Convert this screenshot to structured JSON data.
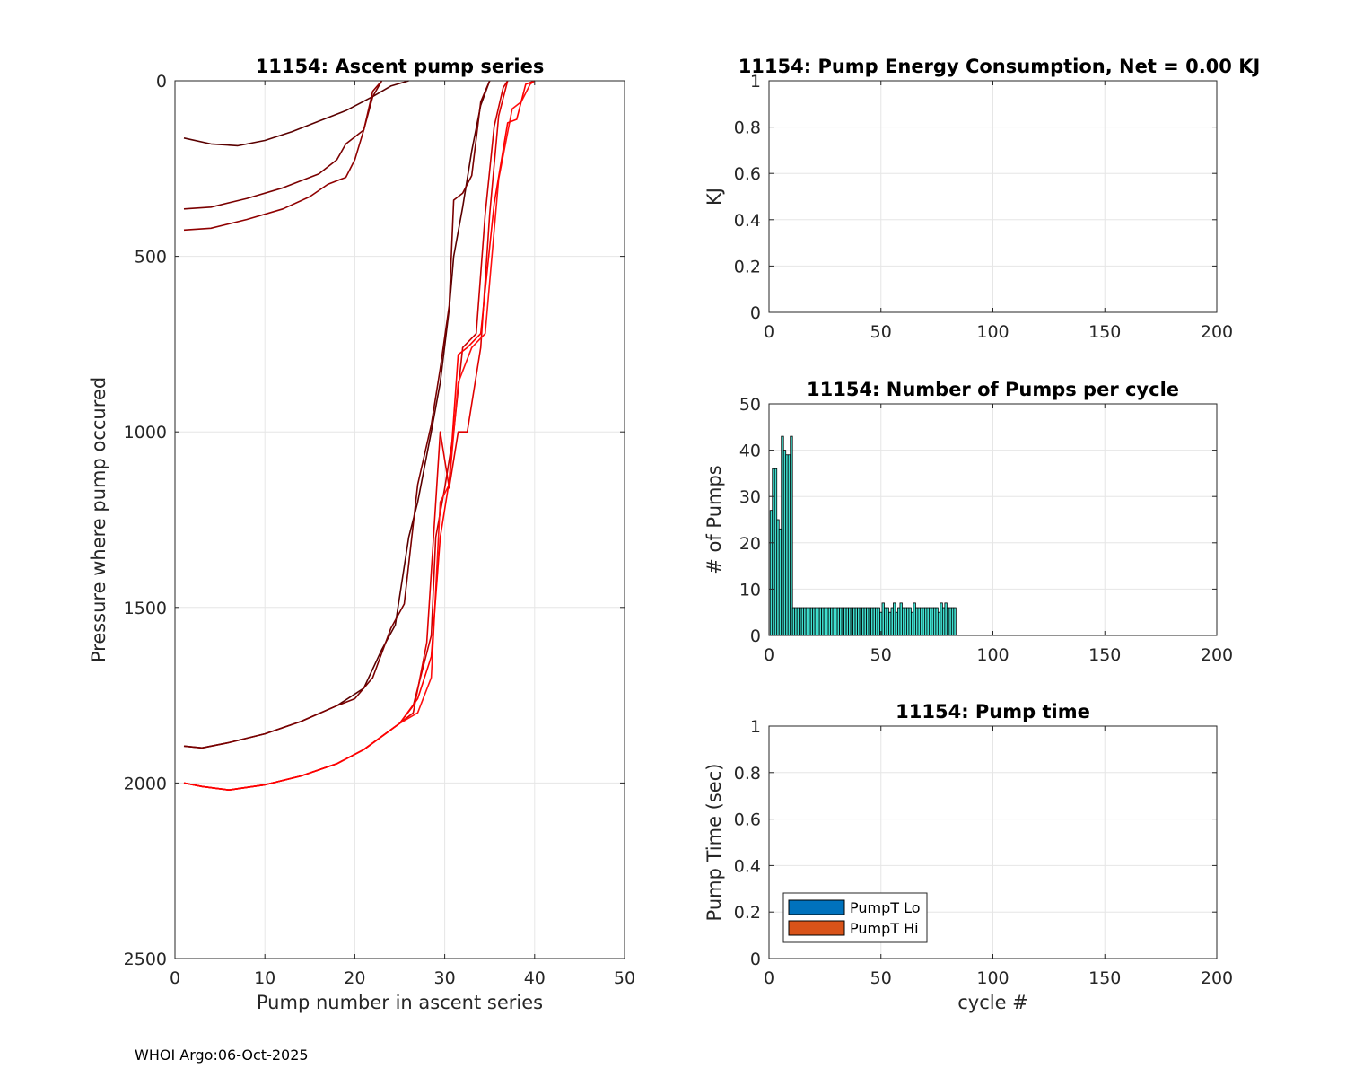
{
  "figure": {
    "footer": "WHOI Argo:06-Oct-2025"
  },
  "colors": {
    "background": "#ffffff",
    "grid": "#e6e6e6",
    "axis": "#262626",
    "bar_face": "#40e0d0",
    "bar_edge": "#000000",
    "legend_lo": "#0072bd",
    "legend_hi": "#d95319"
  },
  "chart_data": [
    {
      "id": "ascent",
      "type": "line",
      "title": "11154: Ascent pump series",
      "xlabel": "Pump number in ascent series",
      "ylabel": "Pressure where pump occured",
      "xlim": [
        0,
        50
      ],
      "ylim": [
        0,
        2500
      ],
      "y_reversed": true,
      "xticks": [
        0,
        10,
        20,
        30,
        40,
        50
      ],
      "yticks": [
        0,
        500,
        1000,
        1500,
        2000,
        2500
      ],
      "grid": true,
      "series": [
        {
          "color": "#5a0000",
          "x": [
            1,
            4,
            7,
            10,
            13,
            16,
            19,
            22,
            24,
            26
          ],
          "y": [
            163,
            180,
            185,
            170,
            145,
            115,
            85,
            45,
            15,
            0
          ]
        },
        {
          "color": "#7a0000",
          "x": [
            1,
            4,
            8,
            12,
            16,
            18,
            19,
            21,
            22,
            23
          ],
          "y": [
            365,
            360,
            335,
            305,
            265,
            225,
            180,
            140,
            45,
            0
          ]
        },
        {
          "color": "#900000",
          "x": [
            1,
            4,
            8,
            12,
            15,
            17,
            19,
            20,
            21,
            22,
            23
          ],
          "y": [
            425,
            420,
            395,
            365,
            330,
            295,
            275,
            225,
            140,
            30,
            0
          ]
        },
        {
          "color": "#5a0000",
          "x": [
            1,
            3,
            6,
            10,
            14,
            18,
            21,
            23,
            24.5,
            26,
            27,
            28.5,
            29.5,
            30.5,
            31,
            32,
            33,
            34,
            35
          ],
          "y": [
            1895,
            1900,
            1885,
            1860,
            1825,
            1780,
            1730,
            1620,
            1550,
            1300,
            1200,
            1000,
            860,
            650,
            500,
            360,
            200,
            70,
            0
          ]
        },
        {
          "color": "#7a0000",
          "x": [
            1,
            3,
            6,
            10,
            14,
            18,
            20,
            22,
            24,
            25.5,
            27,
            28.5,
            29.5,
            30.5,
            31,
            32,
            33,
            34,
            35
          ],
          "y": [
            1895,
            1900,
            1885,
            1860,
            1825,
            1780,
            1760,
            1700,
            1560,
            1490,
            1150,
            980,
            820,
            640,
            340,
            320,
            270,
            60,
            0
          ]
        },
        {
          "color": "#cc0000",
          "x": [
            1,
            3,
            6,
            10,
            14,
            18,
            21,
            25,
            26.5,
            28.5,
            29,
            30,
            31,
            32,
            33.5,
            34.5,
            35.5,
            36.5,
            37
          ],
          "y": [
            2000,
            2010,
            2020,
            2005,
            1980,
            1945,
            1905,
            1830,
            1780,
            1580,
            1300,
            1160,
            1000,
            760,
            720,
            380,
            130,
            20,
            0
          ]
        },
        {
          "color": "#e00000",
          "x": [
            1,
            3,
            6,
            10,
            14,
            18,
            21,
            25,
            26.5,
            28,
            29.5,
            30.5,
            31.5,
            32.5,
            34,
            35,
            36,
            37
          ],
          "y": [
            2000,
            2010,
            2020,
            2005,
            1980,
            1945,
            1905,
            1830,
            1800,
            1600,
            1000,
            1160,
            1000,
            1000,
            760,
            380,
            100,
            0
          ]
        },
        {
          "color": "#ff1010",
          "x": [
            1,
            3,
            6,
            10,
            14,
            18,
            21,
            25,
            27,
            28.5,
            29.5,
            30.5,
            31.5,
            33,
            34.5,
            36,
            37.5,
            38.5,
            39.5,
            40
          ],
          "y": [
            2000,
            2010,
            2020,
            2005,
            1980,
            1945,
            1905,
            1830,
            1800,
            1700,
            1200,
            1150,
            860,
            760,
            720,
            280,
            80,
            60,
            10,
            0
          ]
        },
        {
          "color": "#ff0000",
          "x": [
            1,
            3,
            6,
            10,
            14,
            18,
            21,
            25,
            27,
            28.5,
            29.5,
            30.5,
            31.5,
            32.5,
            34,
            35.5,
            37,
            38,
            39,
            40
          ],
          "y": [
            2000,
            2010,
            2020,
            2005,
            1980,
            1945,
            1905,
            1830,
            1760,
            1640,
            1300,
            1140,
            780,
            760,
            720,
            350,
            120,
            110,
            10,
            0
          ]
        }
      ]
    },
    {
      "id": "energy",
      "type": "bar",
      "title": "11154: Pump Energy Consumption,  Net =   0.00 KJ",
      "xlabel": "",
      "ylabel": "KJ",
      "xlim": [
        0,
        200
      ],
      "ylim": [
        0,
        1
      ],
      "xticks": [
        0,
        50,
        100,
        150,
        200
      ],
      "yticks": [
        0,
        0.2,
        0.4,
        0.6,
        0.8,
        1
      ],
      "ytick_labels": [
        "0",
        "0.2",
        "0.4",
        "0.6",
        "0.8",
        "1"
      ],
      "grid": true,
      "values": []
    },
    {
      "id": "pumps",
      "type": "bar",
      "title": "11154: Number of Pumps per cycle",
      "xlabel": "",
      "ylabel": "# of Pumps",
      "xlim": [
        0,
        200
      ],
      "ylim": [
        0,
        50
      ],
      "xticks": [
        0,
        50,
        100,
        150,
        200
      ],
      "yticks": [
        0,
        10,
        20,
        30,
        40,
        50
      ],
      "grid": true,
      "x_start": 1,
      "values": [
        27,
        36,
        36,
        25,
        23,
        43,
        40,
        39,
        39,
        43,
        6,
        6,
        6,
        6,
        6,
        6,
        6,
        6,
        6,
        6,
        6,
        6,
        6,
        6,
        6,
        6,
        6,
        6,
        6,
        6,
        6,
        6,
        6,
        6,
        6,
        6,
        6,
        6,
        6,
        6,
        6,
        6,
        6,
        6,
        6,
        6,
        6,
        6,
        6,
        5,
        7,
        6,
        6,
        5,
        6,
        7,
        5,
        6,
        7,
        6,
        6,
        6,
        6,
        5,
        7,
        6,
        6,
        6,
        6,
        6,
        6,
        6,
        6,
        6,
        6,
        5,
        7,
        6,
        7,
        6,
        6,
        6,
        6
      ]
    },
    {
      "id": "pumptime",
      "type": "bar",
      "title": "11154: Pump time",
      "xlabel": "cycle #",
      "ylabel": "Pump Time (sec)",
      "xlim": [
        0,
        200
      ],
      "ylim": [
        0,
        1
      ],
      "xticks": [
        0,
        50,
        100,
        150,
        200
      ],
      "yticks": [
        0,
        0.2,
        0.4,
        0.6,
        0.8,
        1
      ],
      "ytick_labels": [
        "0",
        "0.2",
        "0.4",
        "0.6",
        "0.8",
        "1"
      ],
      "grid": true,
      "legend_position": "bottom-left",
      "series": [
        {
          "name": "PumpT Lo",
          "color": "#0072bd",
          "values": []
        },
        {
          "name": "PumpT Hi",
          "color": "#d95319",
          "values": []
        }
      ]
    }
  ]
}
